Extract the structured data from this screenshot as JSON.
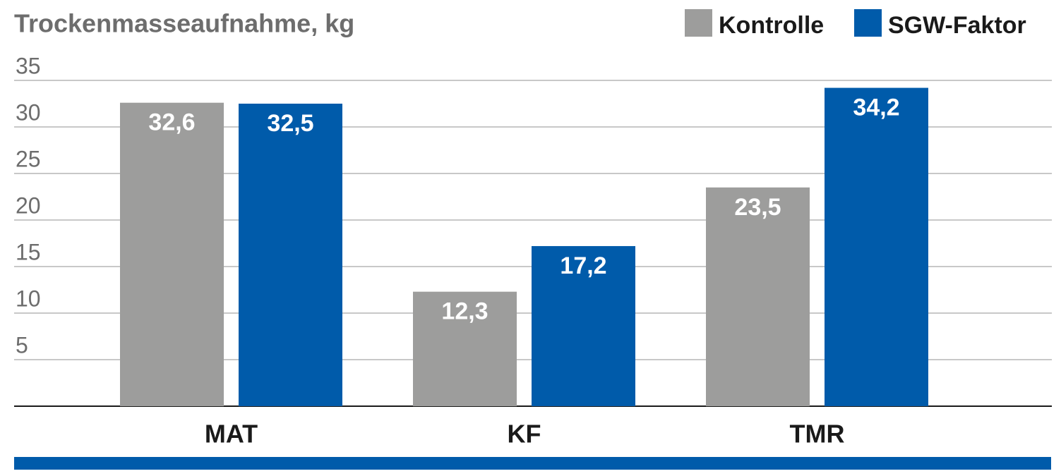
{
  "chart_data": {
    "type": "bar",
    "title": "Trockenmasseaufnahme, kg",
    "categories": [
      "MAT",
      "KF",
      "TMR"
    ],
    "series": [
      {
        "name": "Kontrolle",
        "color": "#9d9d9c",
        "values": [
          32.6,
          12.3,
          23.5
        ],
        "value_labels": [
          "32,6",
          "12,3",
          "23,5"
        ]
      },
      {
        "name": "SGW-Faktor",
        "color": "#005baa",
        "values": [
          32.5,
          17.2,
          34.2
        ],
        "value_labels": [
          "32,5",
          "17,2",
          "34,2"
        ]
      }
    ],
    "ylim": [
      0,
      35
    ],
    "yticks": [
      5,
      10,
      15,
      20,
      25,
      30,
      35
    ],
    "grid": true,
    "legend": "top-right"
  }
}
